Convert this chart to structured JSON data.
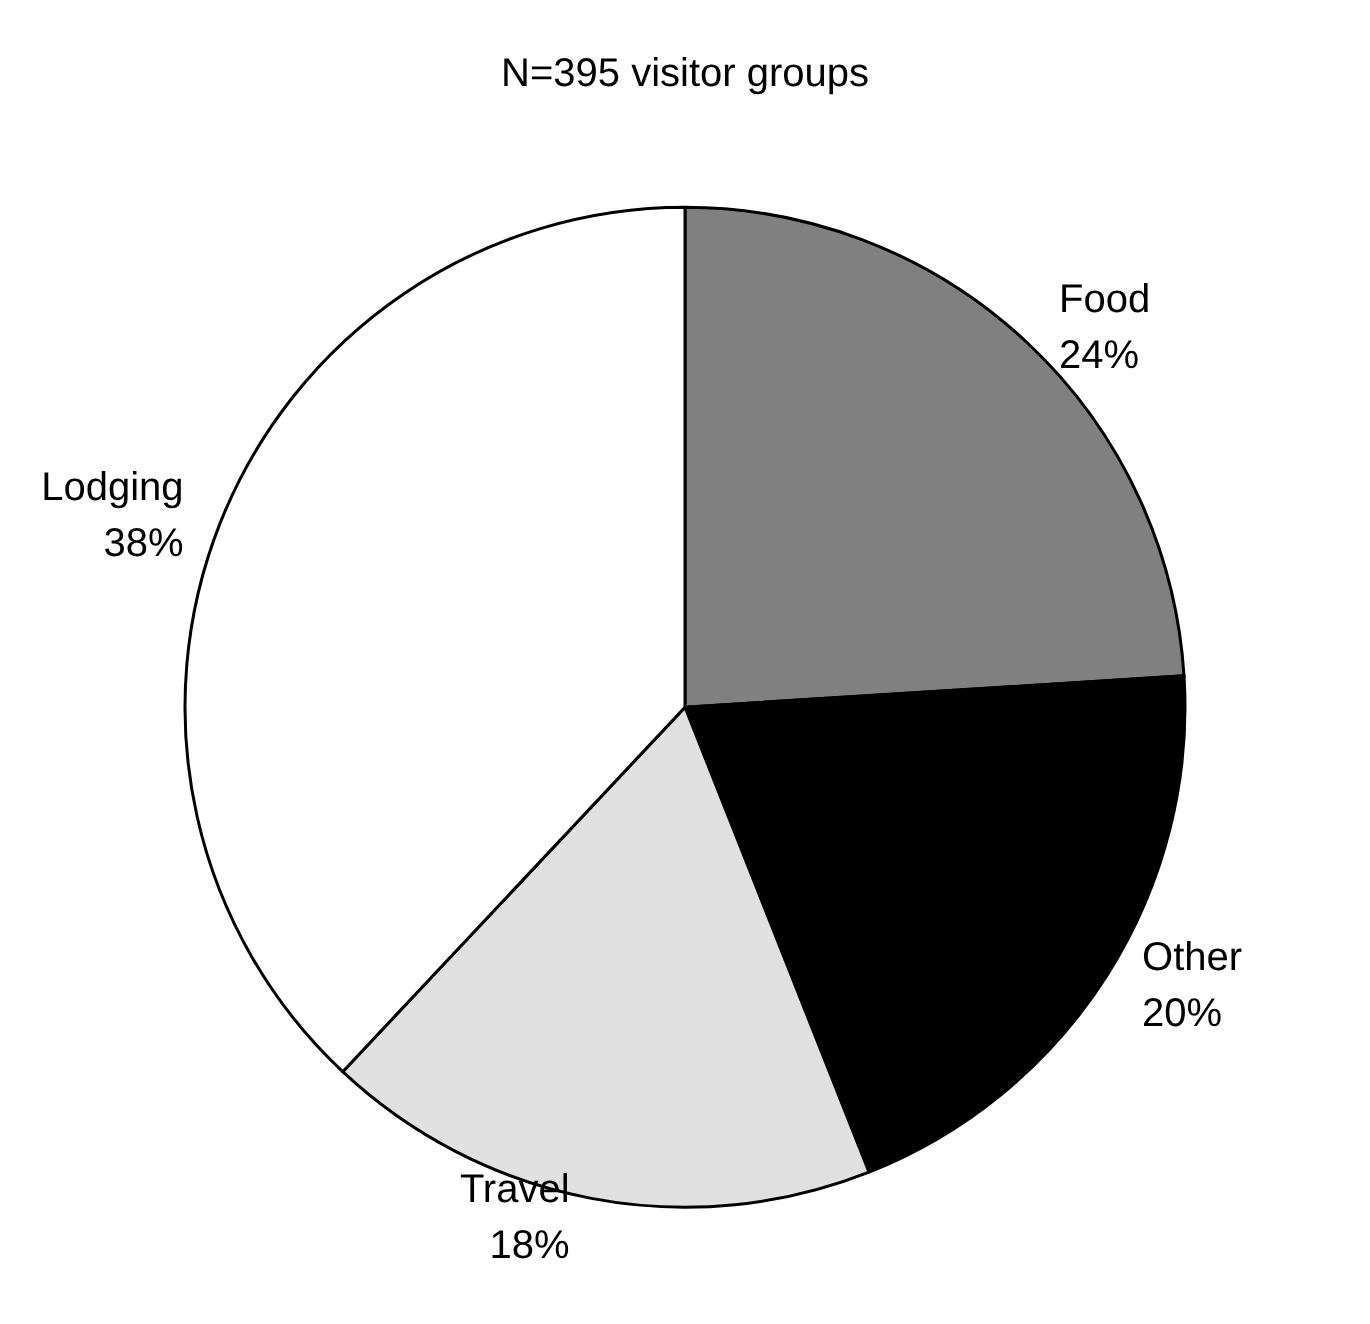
{
  "chart_data": {
    "type": "pie",
    "title": "N=395 visitor groups",
    "categories": [
      "Food",
      "Other",
      "Travel",
      "Lodging"
    ],
    "values": [
      24,
      20,
      18,
      38
    ],
    "value_labels": [
      "24%",
      "20%",
      "18%",
      "38%"
    ],
    "colors": [
      "#808080",
      "#000000",
      "#e0e0e0",
      "#ffffff"
    ],
    "legend": false
  }
}
